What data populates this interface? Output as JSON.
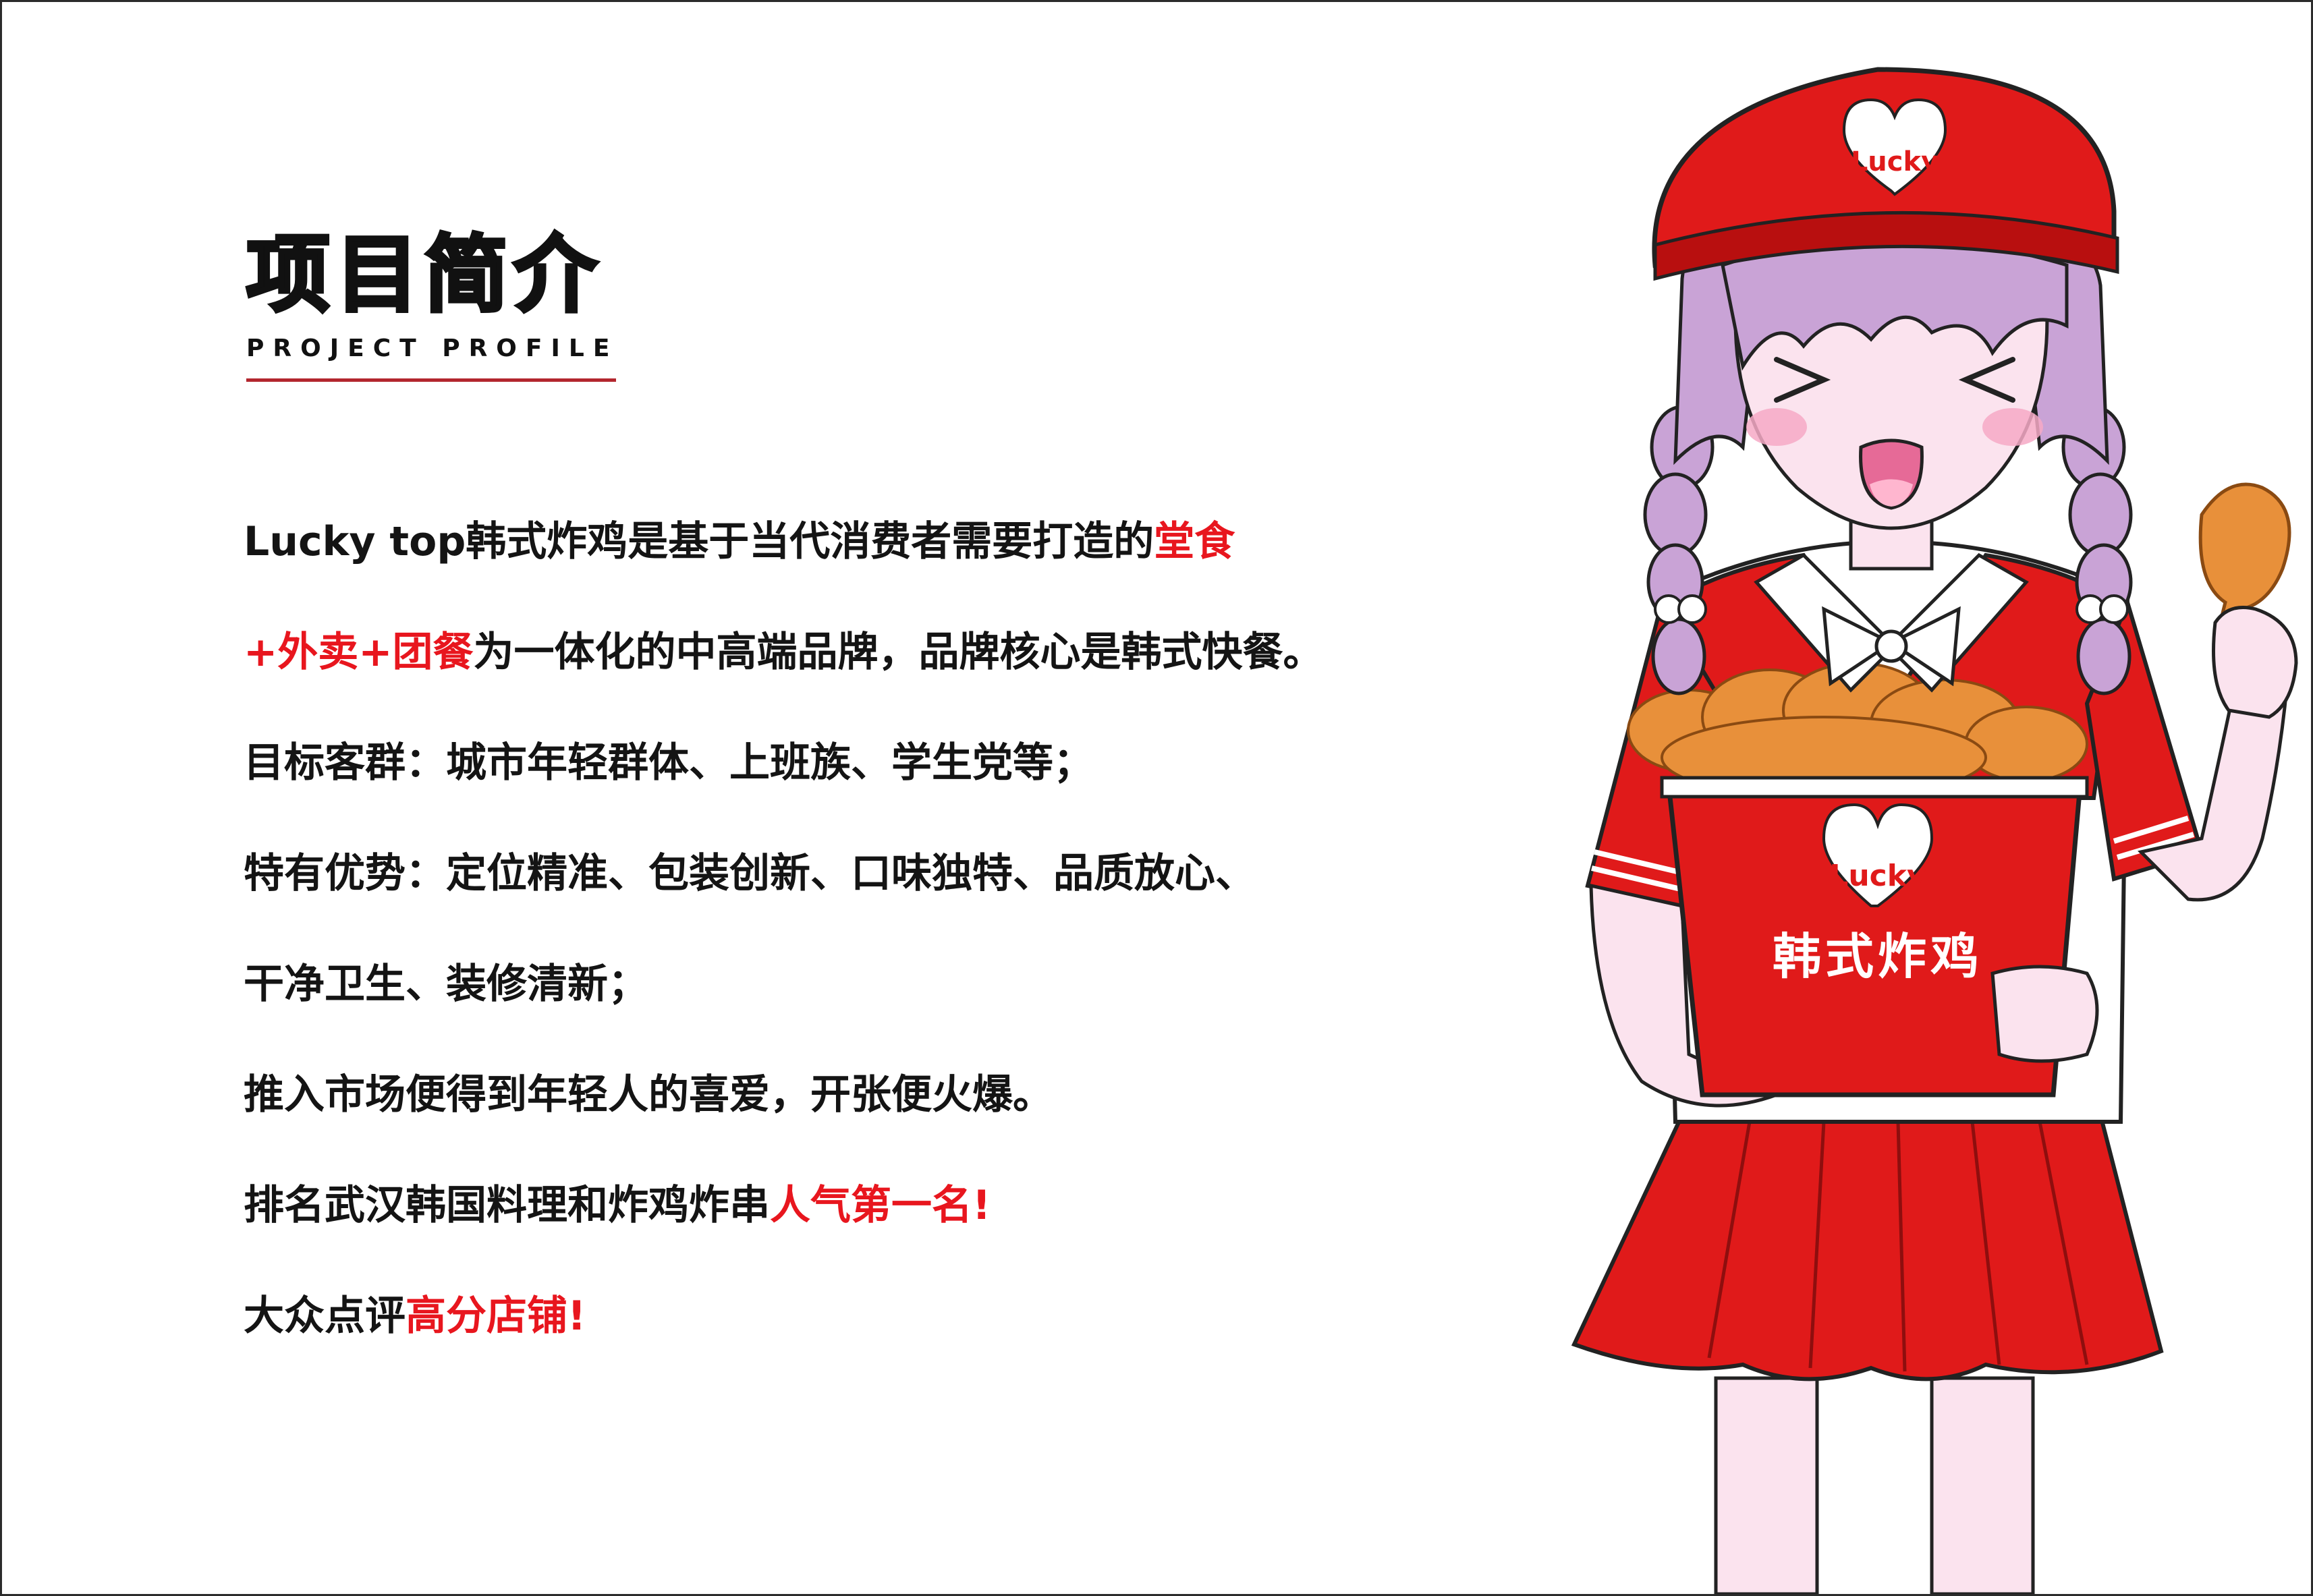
{
  "title": {
    "main": "项目简介",
    "sub": "PROJECT PROFILE"
  },
  "paragraphs": [
    {
      "parts": [
        {
          "text": "Lucky top韩式炸鸡是基于当代消费者需要打造的",
          "hl": false
        },
        {
          "text": "堂食",
          "hl": true
        }
      ]
    },
    {
      "parts": [
        {
          "text": "+外卖+团餐",
          "hl": true
        },
        {
          "text": "为一体化的中高端品牌，品牌核心是韩式快餐。",
          "hl": false
        }
      ]
    },
    {
      "parts": [
        {
          "text": "目标客群：城市年轻群体、上班族、学生党等；",
          "hl": false
        }
      ]
    },
    {
      "parts": [
        {
          "text": "特有优势：定位精准、包装创新、口味独特、品质放心、",
          "hl": false
        }
      ]
    },
    {
      "parts": [
        {
          "text": "干净卫生、装修清新；",
          "hl": false
        }
      ]
    },
    {
      "parts": [
        {
          "text": "推入市场便得到年轻人的喜爱，开张便火爆。",
          "hl": false
        }
      ]
    },
    {
      "parts": [
        {
          "text": "排名武汉韩国料理和炸鸡炸串",
          "hl": false
        },
        {
          "text": "人气第一名!",
          "hl": true
        }
      ]
    },
    {
      "parts": [
        {
          "text": "大众点评",
          "hl": false
        },
        {
          "text": "高分店铺!",
          "hl": true
        }
      ]
    }
  ],
  "illustration": {
    "hat_logo": "Lucky",
    "bucket_logo": "Lucky",
    "bucket_label": "韩式炸鸡"
  },
  "colors": {
    "accent_red": "#e8161e",
    "uniform_red": "#e01a1a",
    "underline": "#b3262e",
    "text": "#141414",
    "hair": "#c9a3d6",
    "skin": "#fbe3ee",
    "chicken": "#e8903a"
  }
}
